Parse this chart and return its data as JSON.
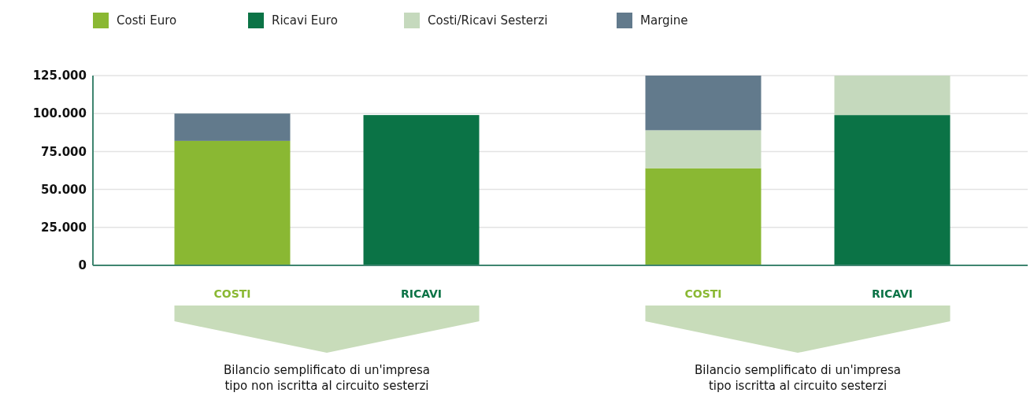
{
  "chart_data": {
    "type": "bar",
    "stacked": true,
    "categories": [
      "COSTI",
      "RICAVI",
      "COSTI",
      "RICAVI"
    ],
    "series": [
      {
        "name": "Costi Euro",
        "color": "#8ab833",
        "values": [
          82000,
          null,
          64000,
          null
        ]
      },
      {
        "name": "Ricavi Euro",
        "color": "#0b7346",
        "values": [
          null,
          99000,
          null,
          99000
        ]
      },
      {
        "name": "Costi/Ricavi Sesterzi",
        "color": "#c5d9bd",
        "values": [
          null,
          null,
          25000,
          26000
        ]
      },
      {
        "name": "Margine",
        "color": "#627a8c",
        "values": [
          18000,
          null,
          36000,
          null
        ]
      }
    ],
    "ylim": [
      0,
      125000
    ],
    "yticks": [
      {
        "value": 0,
        "label": "0"
      },
      {
        "value": 25000,
        "label": "25.000"
      },
      {
        "value": 50000,
        "label": "50.000"
      },
      {
        "value": 75000,
        "label": "75.000"
      },
      {
        "value": 100000,
        "label": "100.000"
      },
      {
        "value": 125000,
        "label": "125.000"
      }
    ],
    "grid": "y",
    "legend": "top left",
    "annotations": [
      "Bilancio semplificato di un'impresa\ntipo non iscritta al circuito sesterzi",
      "Bilancio semplificato di un'impresa\ntipo iscritta al circuito sesterzi"
    ]
  }
}
